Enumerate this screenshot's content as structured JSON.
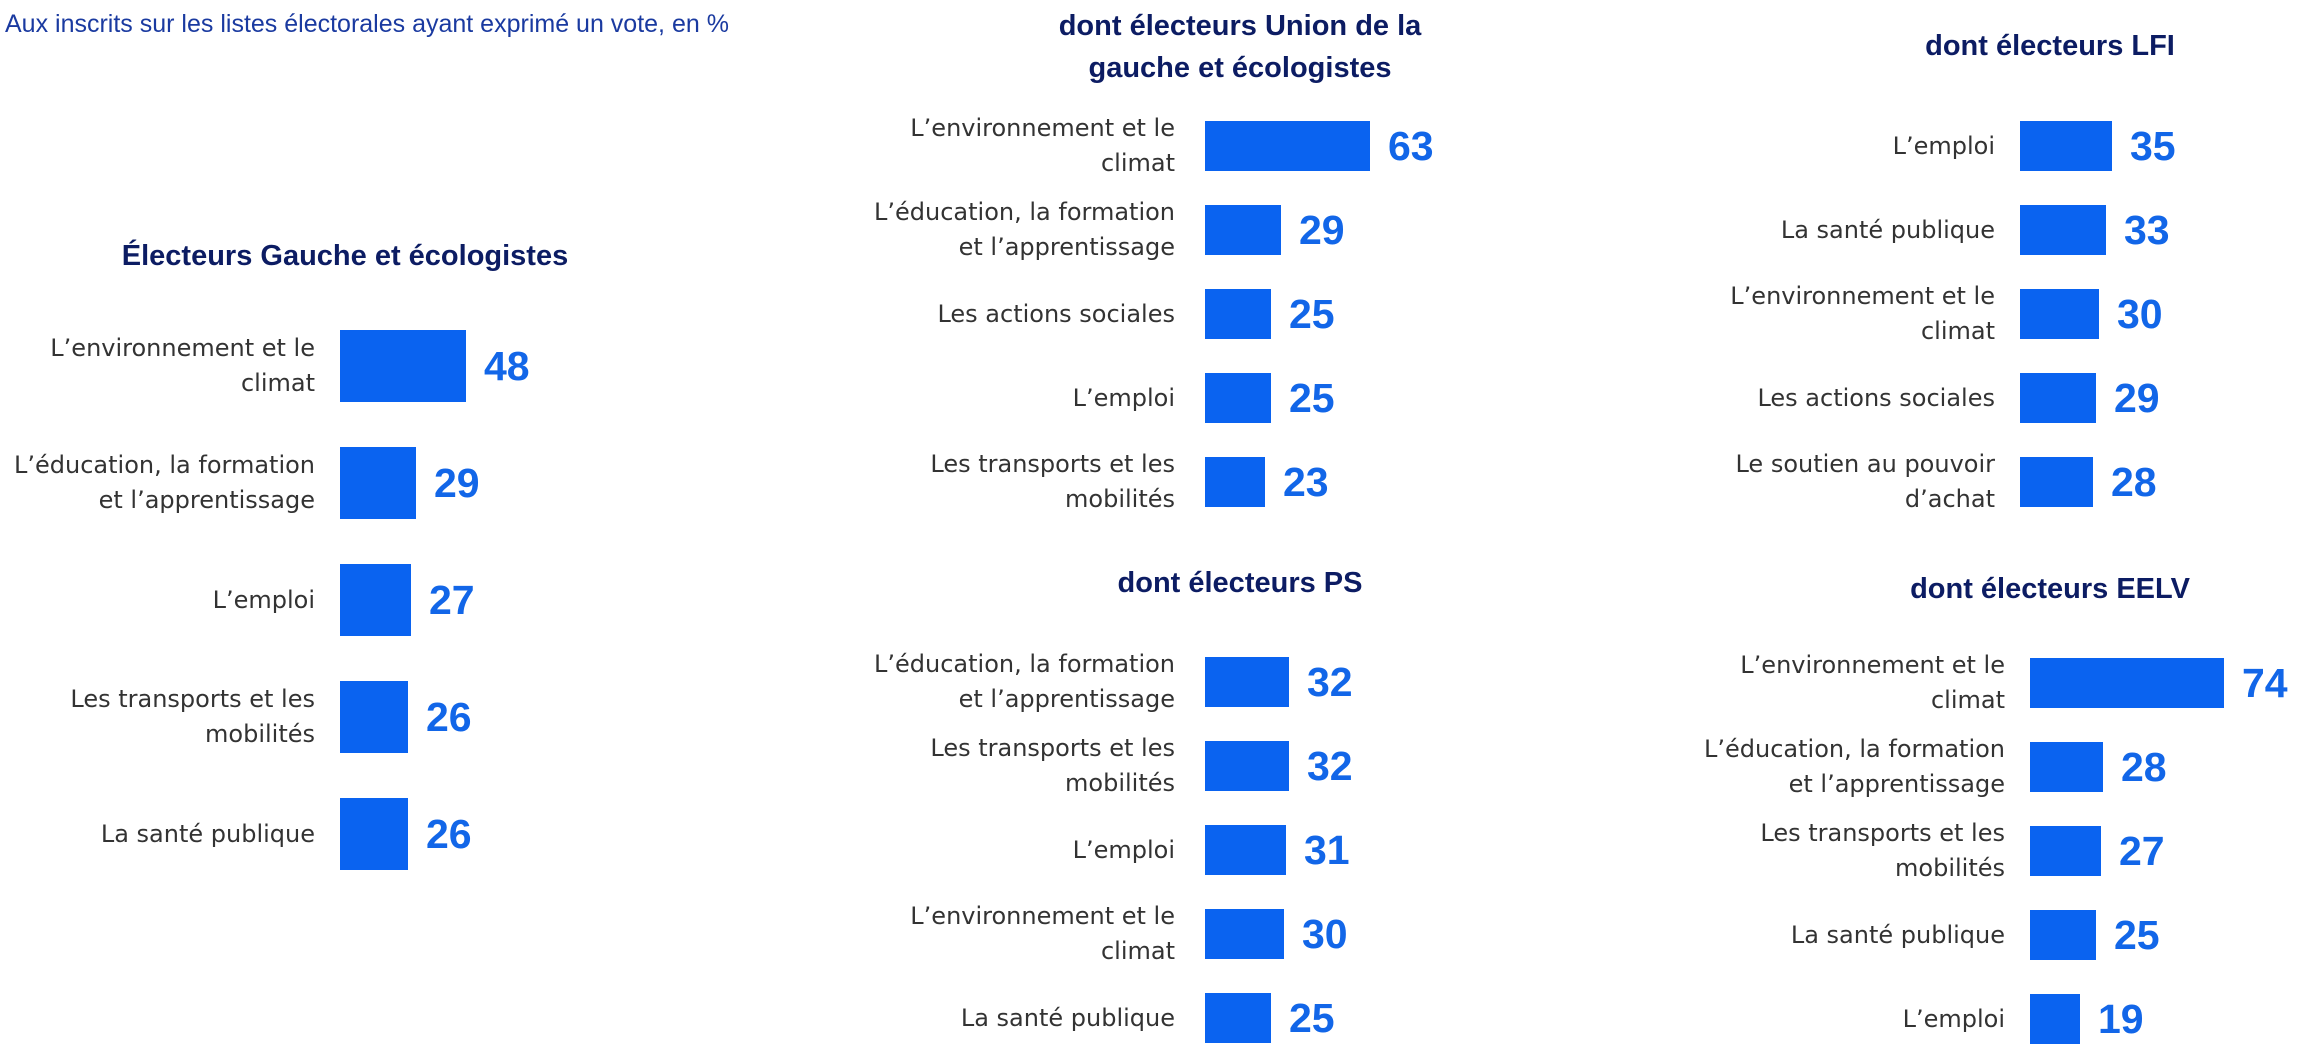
{
  "subtitle": "Aux inscrits sur les listes électorales ayant exprimé un vote, en %",
  "colors": {
    "bar": "#0a63f0",
    "value": "#1266e8",
    "title": "#0c1c63",
    "subtitle": "#1a3aa0"
  },
  "chart_data": [
    {
      "type": "bar",
      "orientation": "horizontal",
      "title": "Électeurs Gauche et écologistes",
      "categories": [
        "L’environnement et le climat",
        "L’éducation, la formation et l’apprentissage",
        "L’emploi",
        "Les transports et les mobilités",
        "La santé publique"
      ],
      "values": [
        48,
        29,
        27,
        26,
        26
      ]
    },
    {
      "type": "bar",
      "orientation": "horizontal",
      "title": "dont électeurs Union de la gauche et écologistes",
      "categories": [
        "L’environnement et le climat",
        "L’éducation, la formation et l’apprentissage",
        "Les actions sociales",
        "L’emploi",
        "Les transports et les mobilités"
      ],
      "values": [
        63,
        29,
        25,
        25,
        23
      ]
    },
    {
      "type": "bar",
      "orientation": "horizontal",
      "title": "dont électeurs PS",
      "categories": [
        "L’éducation, la formation et l’apprentissage",
        "Les transports et les mobilités",
        "L’emploi",
        "L’environnement et le climat",
        "La santé publique"
      ],
      "values": [
        32,
        32,
        31,
        30,
        25
      ]
    },
    {
      "type": "bar",
      "orientation": "horizontal",
      "title": "dont électeurs LFI",
      "categories": [
        "L’emploi",
        "La santé publique",
        "L’environnement et le climat",
        "Les actions sociales",
        "Le soutien au pouvoir d’achat"
      ],
      "values": [
        35,
        33,
        30,
        29,
        28
      ]
    },
    {
      "type": "bar",
      "orientation": "horizontal",
      "title": "dont électeurs EELV",
      "categories": [
        "L’environnement et le climat",
        "L’éducation, la formation et l’apprentissage",
        "Les transports et les mobilités",
        "La santé publique",
        "L’emploi"
      ],
      "values": [
        74,
        28,
        27,
        25,
        19
      ]
    }
  ]
}
